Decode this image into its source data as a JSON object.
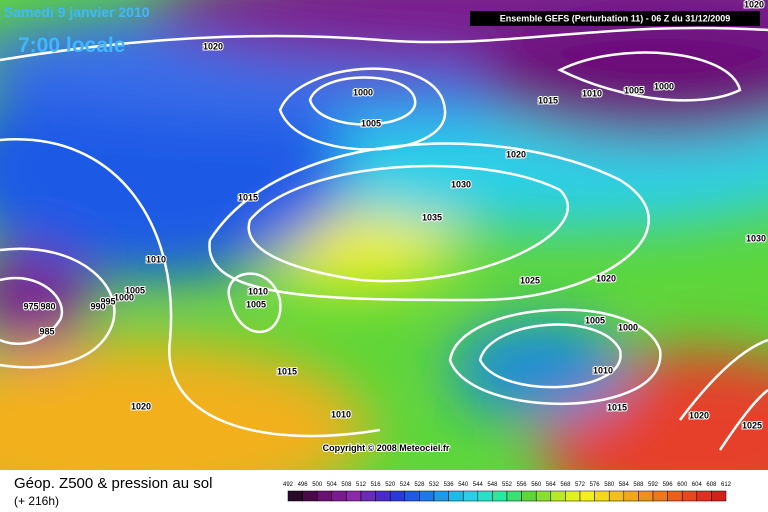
{
  "header": {
    "date": "Samedi 9 janvier 2010",
    "time": "7:00 locale",
    "model": "Ensemble GEFS (Perturbation 11)  - 06 Z du 31/12/2009"
  },
  "copyright": "Copyright © 2008 Meteociel.fr",
  "footer": {
    "title": "Géop. Z500 & pression au sol",
    "lead": "(+ 216h)"
  },
  "isobar_labels": [
    1020,
    1000,
    1005,
    1015,
    1010,
    1005,
    1000,
    1020,
    1020,
    1030,
    1015,
    1035,
    1030,
    1010,
    1025,
    1020,
    1010,
    1005,
    1005,
    1000,
    995,
    990,
    975,
    980,
    985,
    1005,
    1000,
    1015,
    1010,
    1020,
    1010,
    1015,
    1020,
    1025
  ],
  "scale": [
    492,
    496,
    500,
    504,
    508,
    512,
    516,
    520,
    524,
    528,
    532,
    536,
    540,
    544,
    548,
    552,
    556,
    560,
    564,
    568,
    572,
    576,
    580,
    584,
    588,
    592,
    596,
    600,
    604,
    608,
    612
  ]
}
